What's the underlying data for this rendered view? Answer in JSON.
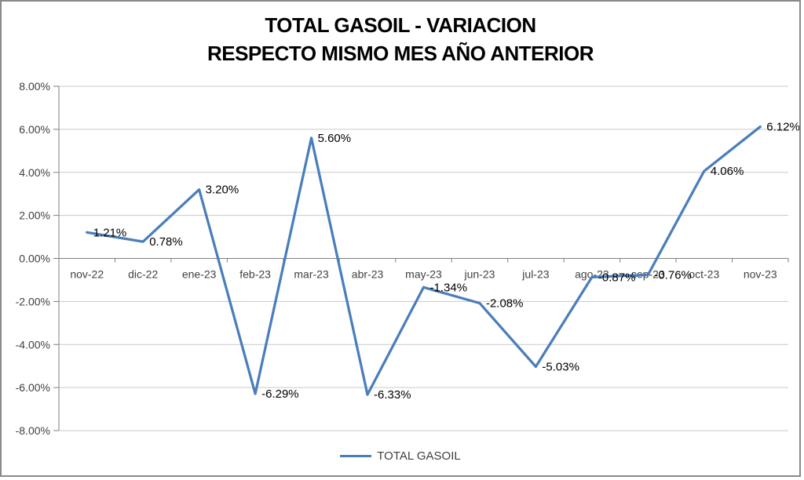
{
  "chart_data": {
    "type": "line",
    "title": "TOTAL GASOIL - VARIACION RESPECTO MISMO MES AÑO ANTERIOR",
    "title_lines": [
      "TOTAL GASOIL - VARIACION",
      "RESPECTO MISMO MES AÑO ANTERIOR"
    ],
    "categories": [
      "nov-22",
      "dic-22",
      "ene-23",
      "feb-23",
      "mar-23",
      "abr-23",
      "may-23",
      "jun-23",
      "jul-23",
      "ago-23",
      "sep-23",
      "oct-23",
      "nov-23"
    ],
    "series": [
      {
        "name": "TOTAL GASOIL",
        "color": "#4A7EBB",
        "values": [
          1.21,
          0.78,
          3.2,
          -6.29,
          5.6,
          -6.33,
          -1.34,
          -2.08,
          -5.03,
          -0.87,
          -0.76,
          4.06,
          6.12
        ],
        "data_labels": [
          "1.21%",
          "0.78%",
          "3.20%",
          "-6.29%",
          "5.60%",
          "-6.33%",
          "-1.34%",
          "-2.08%",
          "-5.03%",
          "-0.87%",
          "-0.76%",
          "4.06%",
          "6.12%"
        ]
      }
    ],
    "y_ticks": [
      {
        "value": 8,
        "label": "8.00%"
      },
      {
        "value": 6,
        "label": "6.00%"
      },
      {
        "value": 4,
        "label": "4.00%"
      },
      {
        "value": 2,
        "label": "2.00%"
      },
      {
        "value": 0,
        "label": "0.00%"
      },
      {
        "value": -2,
        "label": "-2.00%"
      },
      {
        "value": -4,
        "label": "-4.00%"
      },
      {
        "value": -6,
        "label": "-6.00%"
      },
      {
        "value": -8,
        "label": "-8.00%"
      }
    ],
    "ylim": [
      -8,
      8
    ],
    "grid": true,
    "legend_position": "bottom",
    "colors": {
      "gridline": "#C9C9C9",
      "axis": "#7F7F7F",
      "tick_label": "#404040",
      "data_label": "#000000"
    }
  }
}
